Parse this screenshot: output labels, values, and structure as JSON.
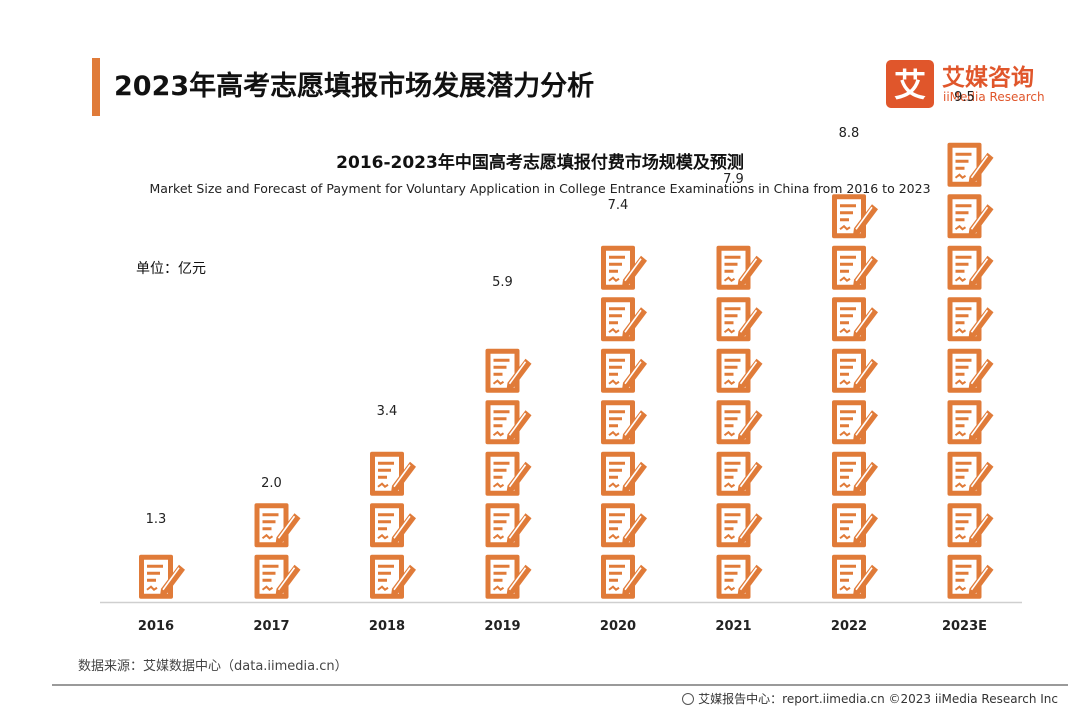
{
  "header": {
    "title": "2023年高考志愿填报市场发展潜力分析",
    "logo_cn": "艾媒咨询",
    "logo_en": "iiMedia Research",
    "logo_mark": "艾"
  },
  "chart_data": {
    "type": "bar",
    "title": "2016-2023年中国高考志愿填报付费市场规模及预测",
    "subtitle": "Market Size and Forecast of Payment for Voluntary Application in College Entrance Examinations in China from 2016 to 2023",
    "unit": "单位：亿元",
    "categories": [
      "2016",
      "2017",
      "2018",
      "2019",
      "2020",
      "2021",
      "2022",
      "2023E"
    ],
    "values": [
      1.3,
      2.0,
      3.4,
      5.9,
      7.4,
      7.9,
      8.8,
      9.5
    ],
    "value_labels": [
      "1.3",
      "2.0",
      "3.4",
      "5.9",
      "7.4",
      "7.9",
      "8.8",
      "9.5"
    ],
    "bar_style": "stacked document-with-pen pictogram icons",
    "grid": false,
    "legend": "none",
    "colors": {
      "icon": "#e07b39",
      "icon_detail": "#ffffff",
      "axis": "#cfcfcf"
    }
  },
  "footer": {
    "source": "数据来源：艾媒数据中心（data.iimedia.cn）",
    "credit": "艾媒报告中心：report.iimedia.cn  ©2023  iiMedia Research  Inc",
    "credit_icon": "globe-icon"
  }
}
